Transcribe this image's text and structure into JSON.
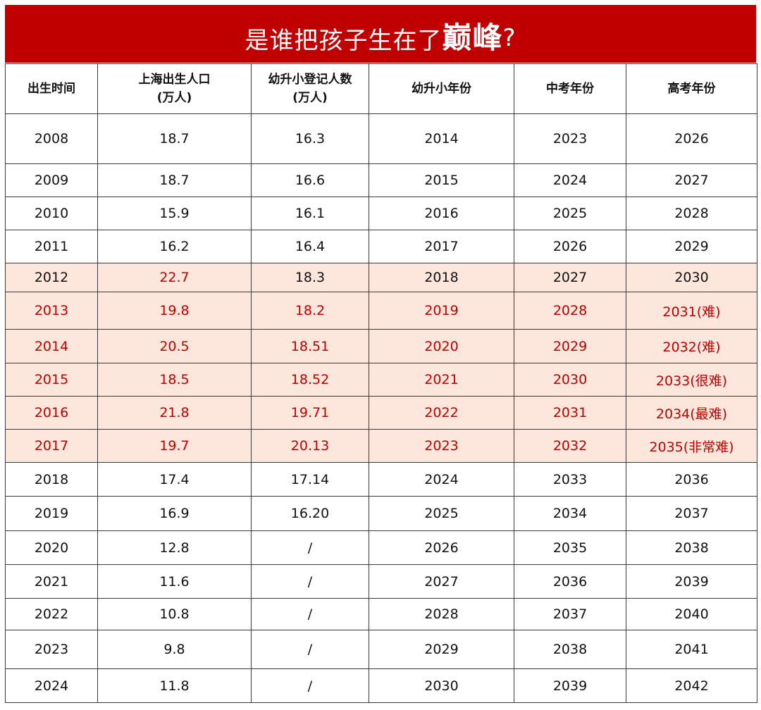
{
  "title": {
    "part1": "是谁把孩子生在了",
    "part2": "巅峰",
    "part3": "?"
  },
  "colors": {
    "banner": "#c00000",
    "highlight_row": "#fde6dc",
    "highlight_text": "#c00000"
  },
  "table": {
    "headers": [
      [
        "出生时间"
      ],
      [
        "上海出生人口",
        "(万人)"
      ],
      [
        "幼升小登记人数",
        "(万人)"
      ],
      [
        "幼升小年份"
      ],
      [
        "中考年份"
      ],
      [
        "高考年份"
      ]
    ],
    "rows": [
      {
        "cells": [
          "2008",
          "18.7",
          "16.3",
          "2014",
          "2023",
          "2026"
        ],
        "highlight": false,
        "red": []
      },
      {
        "cells": [
          "2009",
          "18.7",
          "16.6",
          "2015",
          "2024",
          "2027"
        ],
        "highlight": false,
        "red": []
      },
      {
        "cells": [
          "2010",
          "15.9",
          "16.1",
          "2016",
          "2025",
          "2028"
        ],
        "highlight": false,
        "red": []
      },
      {
        "cells": [
          "2011",
          "16.2",
          "16.4",
          "2017",
          "2026",
          "2029"
        ],
        "highlight": false,
        "red": []
      },
      {
        "cells": [
          "2012",
          "22.7",
          "18.3",
          "2018",
          "2027",
          "2030"
        ],
        "highlight": true,
        "red": [
          1
        ]
      },
      {
        "cells": [
          "2013",
          "19.8",
          "18.2",
          "2019",
          "2028",
          "2031(难)"
        ],
        "highlight": true,
        "red": [
          0,
          1,
          2,
          3,
          4,
          5
        ]
      },
      {
        "cells": [
          "2014",
          "20.5",
          "18.51",
          "2020",
          "2029",
          "2032(难)"
        ],
        "highlight": true,
        "red": [
          0,
          1,
          2,
          3,
          4,
          5
        ]
      },
      {
        "cells": [
          "2015",
          "18.5",
          "18.52",
          "2021",
          "2030",
          "2033(很难)"
        ],
        "highlight": true,
        "red": [
          0,
          1,
          2,
          3,
          4,
          5
        ]
      },
      {
        "cells": [
          "2016",
          "21.8",
          "19.71",
          "2022",
          "2031",
          "2034(最难)"
        ],
        "highlight": true,
        "red": [
          0,
          1,
          2,
          3,
          4,
          5
        ]
      },
      {
        "cells": [
          "2017",
          "19.7",
          "20.13",
          "2023",
          "2032",
          "2035(非常难)"
        ],
        "highlight": true,
        "red": [
          0,
          1,
          2,
          3,
          4,
          5
        ]
      },
      {
        "cells": [
          "2018",
          "17.4",
          "17.14",
          "2024",
          "2033",
          "2036"
        ],
        "highlight": false,
        "red": []
      },
      {
        "cells": [
          "2019",
          "16.9",
          "16.20",
          "2025",
          "2034",
          "2037"
        ],
        "highlight": false,
        "red": []
      },
      {
        "cells": [
          "2020",
          "12.8",
          "/",
          "2026",
          "2035",
          "2038"
        ],
        "highlight": false,
        "red": []
      },
      {
        "cells": [
          "2021",
          "11.6",
          "/",
          "2027",
          "2036",
          "2039"
        ],
        "highlight": false,
        "red": []
      },
      {
        "cells": [
          "2022",
          "10.8",
          "/",
          "2028",
          "2037",
          "2040"
        ],
        "highlight": false,
        "red": []
      },
      {
        "cells": [
          "2023",
          "9.8",
          "/",
          "2029",
          "2038",
          "2041"
        ],
        "highlight": false,
        "red": []
      },
      {
        "cells": [
          "2024",
          "11.8",
          "/",
          "2030",
          "2039",
          "2042"
        ],
        "highlight": false,
        "red": []
      }
    ]
  }
}
